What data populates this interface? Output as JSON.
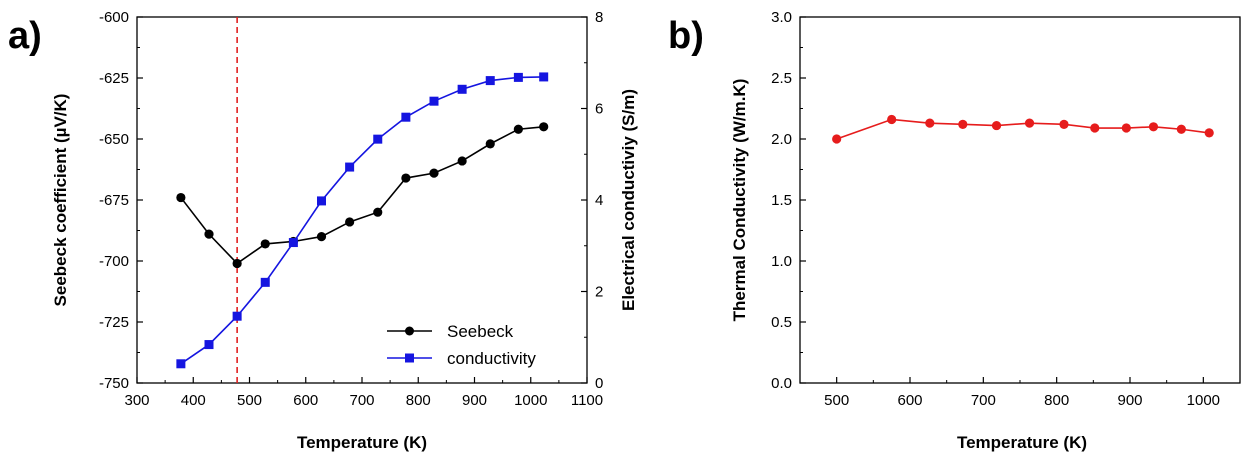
{
  "chart_data": [
    {
      "type": "line",
      "panel_label": "a)",
      "xlabel": "Temperature (K)",
      "ylabel": "Seebeck coefficient (µV/K)",
      "y2label": "Electrical conductiviy (S/m)",
      "xlim": [
        300,
        1100
      ],
      "ylim": [
        -750,
        -600
      ],
      "y2lim": [
        0,
        8
      ],
      "xticks": [
        "300",
        "400",
        "500",
        "600",
        "700",
        "800",
        "900",
        "1000",
        "1100"
      ],
      "yticks": [
        "-750",
        "-725",
        "-700",
        "-675",
        "-650",
        "-625",
        "-600"
      ],
      "y2ticks": [
        "0",
        "2",
        "4",
        "6",
        "8"
      ],
      "vline": {
        "x": 478,
        "color": "#e02020"
      },
      "legend": {
        "position": "bottom-right"
      },
      "series": [
        {
          "name": "Seebeck",
          "axis": "left",
          "color": "#000000",
          "marker": "circle",
          "x": [
            378,
            428,
            478,
            528,
            578,
            628,
            678,
            728,
            778,
            828,
            878,
            928,
            978,
            1023
          ],
          "y": [
            -674,
            -689,
            -701,
            -693,
            -692,
            -690,
            -684,
            -680,
            -666,
            -664,
            -659,
            -652,
            -646,
            -645
          ]
        },
        {
          "name": "conductivity",
          "axis": "right",
          "color": "#1515e0",
          "marker": "square",
          "x": [
            378,
            428,
            478,
            528,
            578,
            628,
            678,
            728,
            778,
            828,
            878,
            928,
            978,
            1023
          ],
          "y": [
            0.42,
            0.84,
            1.46,
            2.2,
            3.07,
            3.98,
            4.72,
            5.33,
            5.81,
            6.16,
            6.42,
            6.61,
            6.68,
            6.69
          ]
        }
      ]
    },
    {
      "type": "line",
      "panel_label": "b)",
      "xlabel": "Temperature (K)",
      "ylabel": "Thermal Conductivity (W/m.K)",
      "xlim": [
        450,
        1050
      ],
      "ylim": [
        0,
        3
      ],
      "xticks": [
        "500",
        "600",
        "700",
        "800",
        "900",
        "1000"
      ],
      "yticks": [
        "0.0",
        "0.5",
        "1.0",
        "1.5",
        "2.0",
        "2.5",
        "3.0"
      ],
      "series": [
        {
          "color": "#e61c1c",
          "marker": "circle",
          "x": [
            500,
            575,
            627,
            672,
            718,
            763,
            810,
            852,
            895,
            932,
            970,
            1008
          ],
          "y": [
            2.0,
            2.16,
            2.13,
            2.12,
            2.11,
            2.13,
            2.12,
            2.09,
            2.09,
            2.1,
            2.08,
            2.05
          ]
        }
      ]
    }
  ]
}
